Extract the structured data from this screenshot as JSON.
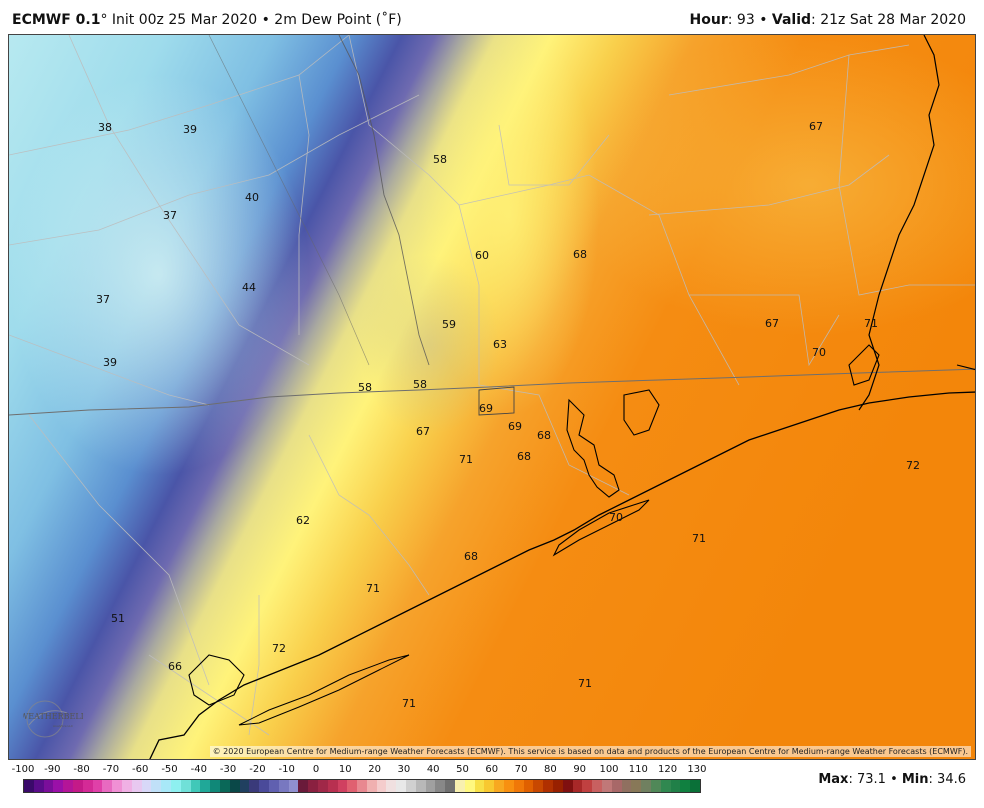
{
  "header": {
    "model": "ECMWF 0.1",
    "degree": "°",
    "init": "Init 00z 25 Mar 2020",
    "bullet": "•",
    "field": "2m Dew Point (˚F)",
    "hour_label": "Hour",
    "hour_value": ": 93",
    "valid_label": "Valid",
    "valid_value": ": 21z Sat 28 Mar 2020"
  },
  "map": {
    "copyright": "© 2020 European Centre for Medium-range Weather Forecasts (ECMWF). This service is based on data and products of the European Centre for Medium-range Weather Forecasts (ECMWF).",
    "logo_text": "WEATHERBELL",
    "logo_sub": "Analytics LLC",
    "values": [
      "38",
      "39",
      "58",
      "67",
      "40",
      "37",
      "60",
      "68",
      "37",
      "44",
      "59",
      "67",
      "71",
      "63",
      "70",
      "39",
      "58",
      "58",
      "69",
      "69",
      "68",
      "67",
      "71",
      "68",
      "72",
      "70",
      "62",
      "71",
      "68",
      "71",
      "51",
      "72",
      "66",
      "71",
      "71"
    ]
  },
  "legend": {
    "ticks": [
      "-100",
      "-90",
      "-80",
      "-70",
      "-60",
      "-50",
      "-40",
      "-30",
      "-20",
      "-10",
      "0",
      "10",
      "20",
      "30",
      "40",
      "50",
      "60",
      "70",
      "80",
      "90",
      "100",
      "110",
      "120",
      "130"
    ],
    "colors": [
      "#3a0a6a",
      "#5a0c8a",
      "#7a0e9a",
      "#9a10a8",
      "#b41598",
      "#c41a88",
      "#d42a96",
      "#e040a8",
      "#e86ac0",
      "#f090d4",
      "#f0b0e4",
      "#e8c8f0",
      "#d8d8f8",
      "#c0e0f8",
      "#a8e8f8",
      "#8ef0f0",
      "#70e0d8",
      "#40c8b8",
      "#20a898",
      "#108878",
      "#0a6858",
      "#0a4848",
      "#204060",
      "#3a3a7a",
      "#4a4a9a",
      "#6060b0",
      "#7878c0",
      "#9090d0",
      "#6a1a3a",
      "#8a2040",
      "#a02848",
      "#b83050",
      "#d04060",
      "#e06070",
      "#e88890",
      "#f0b0b0",
      "#f4cccc",
      "#f0e0e0",
      "#e8e8e8",
      "#d0d0d0",
      "#b8b8b8",
      "#a0a0a0",
      "#888888",
      "#707070",
      "#f8f0b0",
      "#fff880",
      "#f8e048",
      "#f8c830",
      "#f8a820",
      "#f89010",
      "#f07808",
      "#e06000",
      "#c84800",
      "#b03000",
      "#982000",
      "#801010",
      "#a82828",
      "#c04040",
      "#c86060",
      "#c07878",
      "#a86868",
      "#907060",
      "#887858",
      "#708060",
      "#508858",
      "#308850",
      "#208048",
      "#108040",
      "#0a7038"
    ],
    "max_label": "Max",
    "max_value": ": 73.1",
    "bullet": "•",
    "min_label": "Min",
    "min_value": ": 34.6"
  }
}
